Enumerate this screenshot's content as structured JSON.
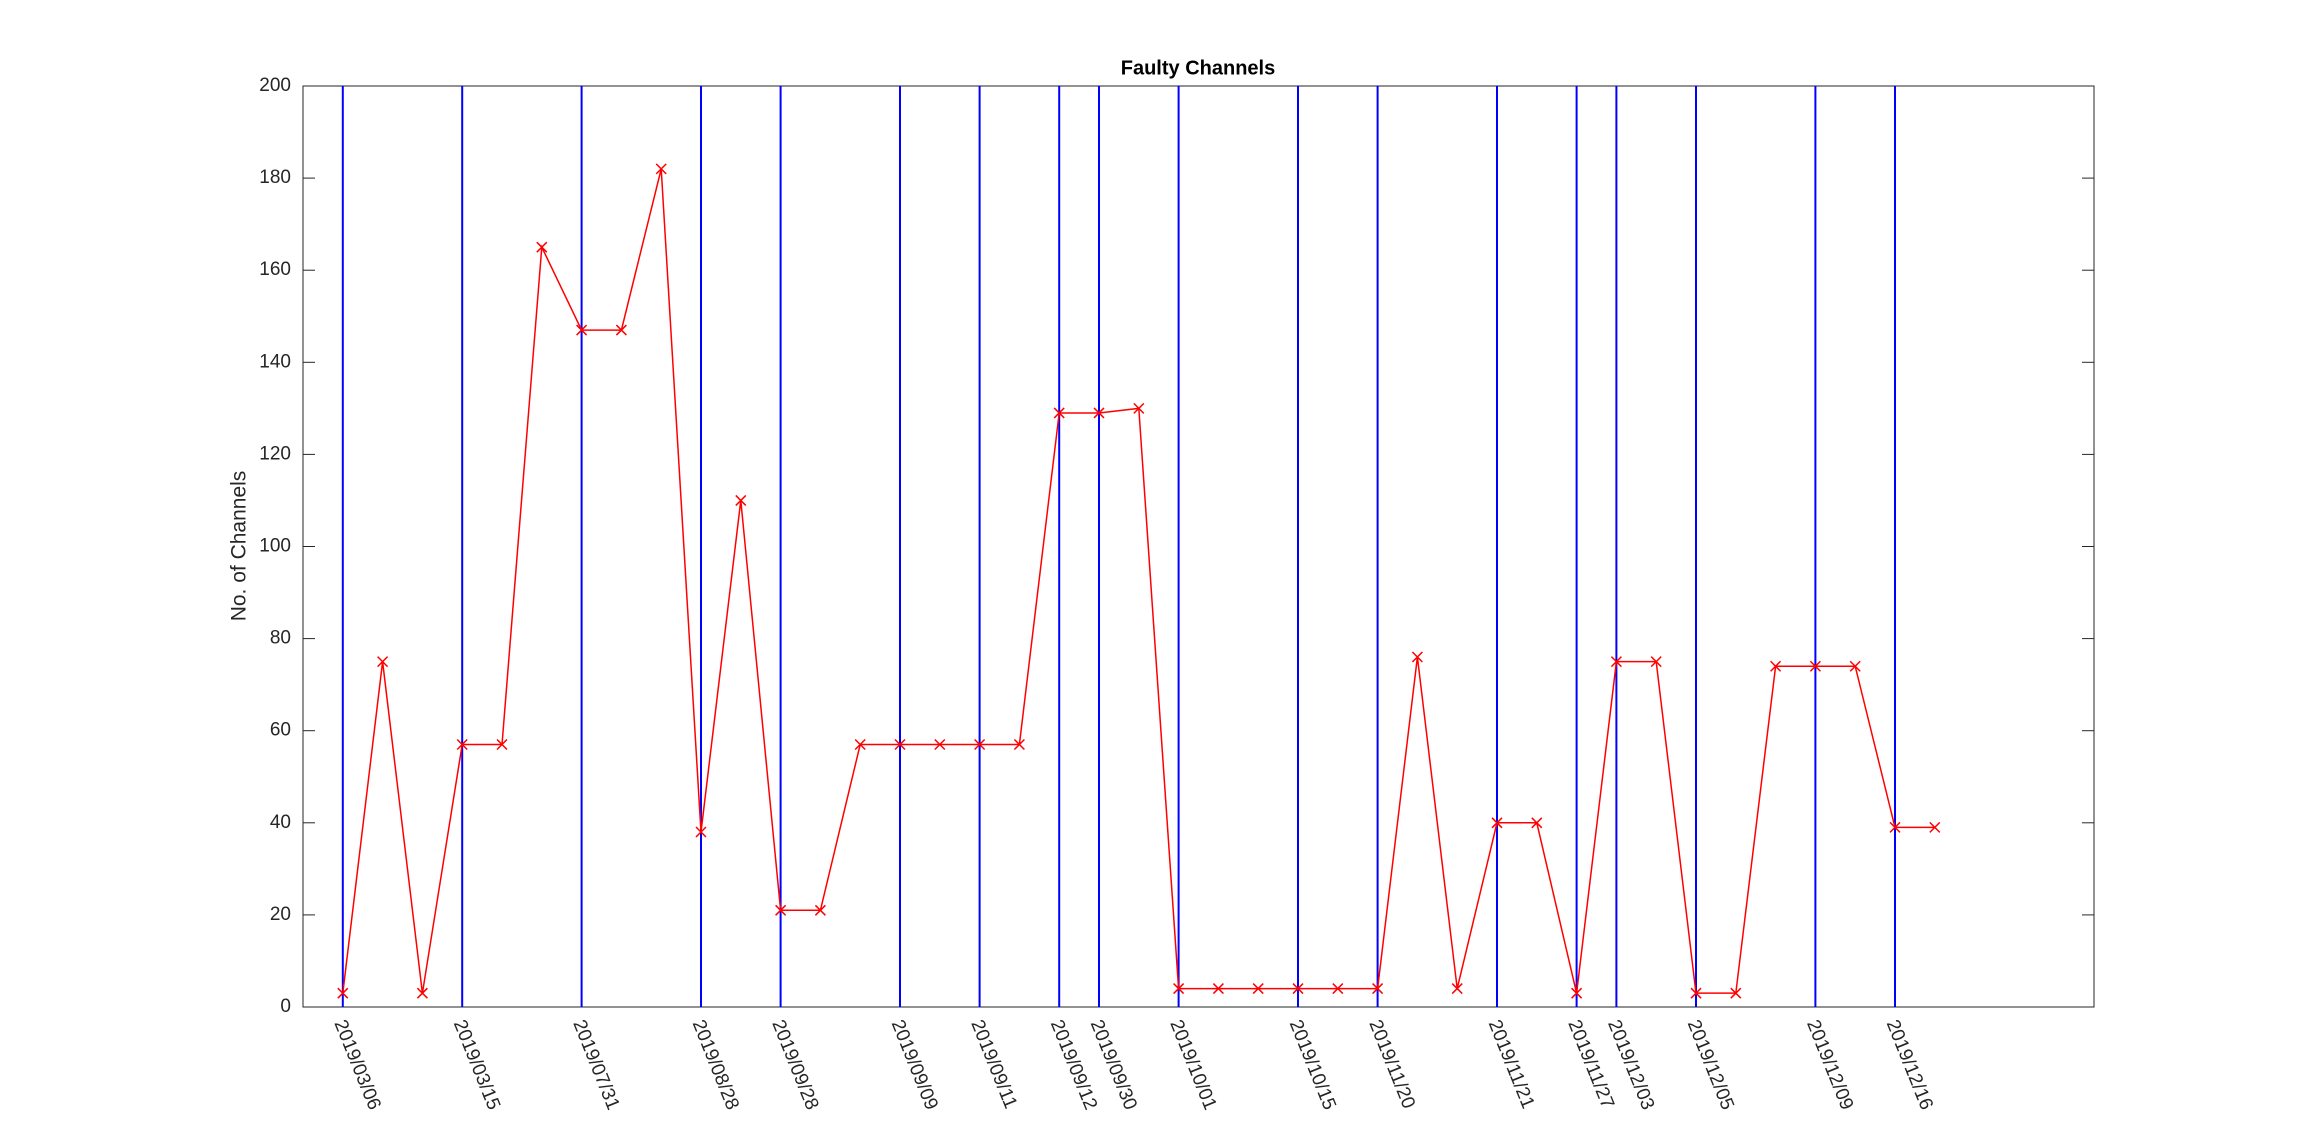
{
  "chart_data": {
    "type": "line",
    "title": "Faulty Channels",
    "ylabel": "No. of Channels",
    "x": [
      1,
      2,
      3,
      4,
      5,
      6,
      7,
      8,
      9,
      10,
      11,
      12,
      13,
      14,
      15,
      16,
      17,
      18,
      19,
      20,
      21,
      22,
      23,
      24,
      25,
      26,
      27,
      28,
      29,
      30,
      31,
      32,
      33,
      34,
      35,
      36,
      37,
      38,
      39,
      40,
      41
    ],
    "values": [
      3,
      75,
      3,
      57,
      57,
      165,
      147,
      147,
      182,
      38,
      110,
      21,
      21,
      57,
      57,
      57,
      57,
      57,
      129,
      129,
      130,
      4,
      4,
      4,
      4,
      4,
      4,
      76,
      4,
      40,
      40,
      3,
      75,
      75,
      3,
      3,
      74,
      74,
      74,
      39,
      39
    ],
    "color": "#ff0000",
    "marker": "x",
    "xlim": [
      0,
      45
    ],
    "xticks": [
      {
        "value": 1,
        "label": "2019/03/06"
      },
      {
        "value": 4,
        "label": "2019/03/15"
      },
      {
        "value": 7,
        "label": "2019/07/31"
      },
      {
        "value": 10,
        "label": "2019/08/28"
      },
      {
        "value": 12,
        "label": "2019/09/28"
      },
      {
        "value": 15,
        "label": "2019/09/09"
      },
      {
        "value": 17,
        "label": "2019/09/11"
      },
      {
        "value": 19,
        "label": "2019/09/12"
      },
      {
        "value": 20,
        "label": "2019/09/30"
      },
      {
        "value": 22,
        "label": "2019/10/01"
      },
      {
        "value": 25,
        "label": "2019/10/15"
      },
      {
        "value": 27,
        "label": "2019/11/20"
      },
      {
        "value": 30,
        "label": "2019/11/21"
      },
      {
        "value": 32,
        "label": "2019/11/27"
      },
      {
        "value": 33,
        "label": "2019/12/03"
      },
      {
        "value": 35,
        "label": "2019/12/05"
      },
      {
        "value": 38,
        "label": "2019/12/09"
      },
      {
        "value": 40,
        "label": "2019/12/16"
      }
    ],
    "xtick_line_color": "#0000ff",
    "ylim": [
      0,
      200
    ],
    "yticks": [
      0,
      20,
      40,
      60,
      80,
      100,
      120,
      140,
      160,
      180,
      200
    ],
    "grid": false
  }
}
